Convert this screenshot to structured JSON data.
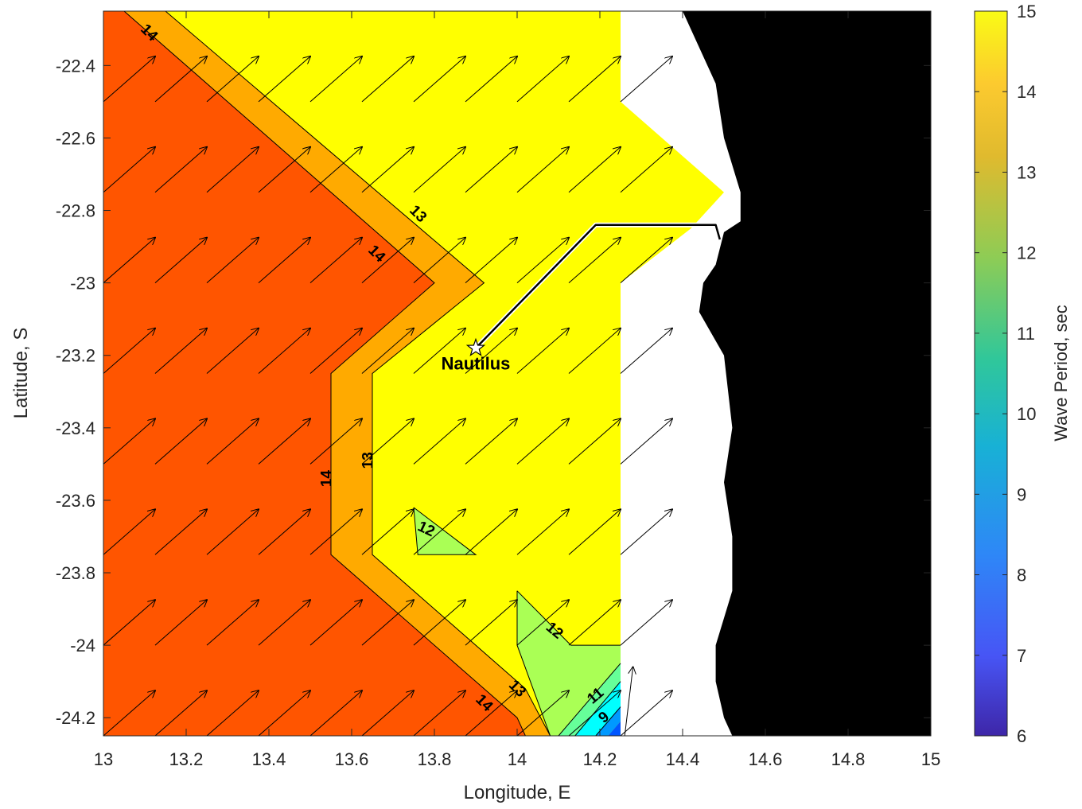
{
  "chart_data": {
    "type": "heatmap",
    "title": "",
    "xlabel": "Longitude, E",
    "ylabel": "Latitude, S",
    "xlim": [
      13,
      15
    ],
    "ylim": [
      -24.25,
      -22.25
    ],
    "x_ticks": [
      13,
      13.2,
      13.4,
      13.6,
      13.8,
      14,
      14.2,
      14.4,
      14.6,
      14.8,
      15
    ],
    "x_tick_labels": [
      "13",
      "13.2",
      "13.4",
      "13.6",
      "13.8",
      "14",
      "14.2",
      "14.4",
      "14.6",
      "14.8",
      "15"
    ],
    "y_ticks": [
      -22.4,
      -22.6,
      -22.8,
      -23,
      -23.2,
      -23.4,
      -23.6,
      -23.8,
      -24,
      -24.2
    ],
    "y_tick_labels": [
      "-22.4",
      "-22.6",
      "-22.8",
      "-23",
      "-23.2",
      "-23.4",
      "-23.6",
      "-23.8",
      "-24",
      "-24.2"
    ],
    "colorbar": {
      "label": "Wave Period, sec",
      "range": [
        6,
        15
      ],
      "ticks": [
        6,
        7,
        8,
        9,
        10,
        11,
        12,
        13,
        14,
        15
      ],
      "tick_labels": [
        "6",
        "7",
        "8",
        "9",
        "10",
        "11",
        "12",
        "13",
        "14",
        "15"
      ],
      "colormap": [
        "#3e26a8",
        "#4755f5",
        "#2e87f7",
        "#18b1d5",
        "#30c79a",
        "#8ecc55",
        "#e0ba2e",
        "#fcca2f",
        "#f9fb15"
      ]
    },
    "regions": [
      {
        "value": 14.5,
        "color": "#ff5500",
        "polygon": [
          [
            13,
            -22.25
          ],
          [
            13.05,
            -22.25
          ],
          [
            13.8,
            -23.0
          ],
          [
            13.55,
            -23.25
          ],
          [
            13.55,
            -23.75
          ],
          [
            14.0,
            -24.2
          ],
          [
            14.02,
            -24.25
          ],
          [
            13,
            -24.25
          ]
        ]
      },
      {
        "value": 13.5,
        "color": "#ffaa00",
        "polygon": [
          [
            13.05,
            -22.25
          ],
          [
            13.15,
            -22.25
          ],
          [
            13.92,
            -23.0
          ],
          [
            13.65,
            -23.25
          ],
          [
            13.65,
            -23.75
          ],
          [
            14.02,
            -24.12
          ],
          [
            14.08,
            -24.25
          ],
          [
            14.02,
            -24.25
          ],
          [
            14.0,
            -24.2
          ],
          [
            13.55,
            -23.75
          ],
          [
            13.55,
            -23.25
          ],
          [
            13.8,
            -23.0
          ]
        ]
      },
      {
        "value": 15,
        "color": "#ffff00",
        "polygon": [
          [
            13.15,
            -22.25
          ],
          [
            14.25,
            -22.25
          ],
          [
            14.25,
            -22.5
          ],
          [
            14.5,
            -22.75
          ],
          [
            14.42,
            -22.85
          ],
          [
            14.25,
            -23.0
          ],
          [
            14.25,
            -24.25
          ],
          [
            14.08,
            -24.25
          ],
          [
            14.02,
            -24.12
          ],
          [
            13.65,
            -23.75
          ],
          [
            13.65,
            -23.25
          ],
          [
            13.92,
            -23.0
          ]
        ]
      },
      {
        "value": 12.5,
        "color": "#aaff55",
        "polygon": [
          [
            13.75,
            -23.62
          ],
          [
            13.76,
            -23.75
          ],
          [
            13.9,
            -23.75
          ]
        ]
      },
      {
        "value": 12.5,
        "color": "#aaff55",
        "polygon": [
          [
            14.0,
            -23.85
          ],
          [
            14.13,
            -24.0
          ],
          [
            14.25,
            -24.0
          ],
          [
            14.25,
            -24.05
          ],
          [
            14.1,
            -24.25
          ],
          [
            14.08,
            -24.25
          ],
          [
            14.0,
            -24.0
          ]
        ]
      },
      {
        "value": 11.5,
        "color": "#66ff99",
        "polygon": [
          [
            14.25,
            -24.05
          ],
          [
            14.25,
            -24.1
          ],
          [
            14.14,
            -24.25
          ],
          [
            14.1,
            -24.25
          ]
        ]
      },
      {
        "value": 10.5,
        "color": "#00ffff",
        "polygon": [
          [
            14.25,
            -24.1
          ],
          [
            14.25,
            -24.17
          ],
          [
            14.19,
            -24.25
          ],
          [
            14.14,
            -24.25
          ]
        ]
      },
      {
        "value": 9.5,
        "color": "#0099ff",
        "polygon": [
          [
            14.25,
            -24.17
          ],
          [
            14.25,
            -24.21
          ],
          [
            14.22,
            -24.25
          ],
          [
            14.19,
            -24.25
          ]
        ]
      },
      {
        "value": 8.5,
        "color": "#0055ff",
        "polygon": [
          [
            14.25,
            -24.21
          ],
          [
            14.25,
            -24.25
          ],
          [
            14.22,
            -24.25
          ]
        ]
      }
    ],
    "contour_lines": [
      {
        "level": 14,
        "points": [
          [
            13.05,
            -22.25
          ],
          [
            13.8,
            -23.0
          ],
          [
            13.55,
            -23.25
          ],
          [
            13.55,
            -23.75
          ],
          [
            14.0,
            -24.2
          ],
          [
            14.02,
            -24.25
          ]
        ]
      },
      {
        "level": 13,
        "points": [
          [
            13.15,
            -22.25
          ],
          [
            13.92,
            -23.0
          ],
          [
            13.65,
            -23.25
          ],
          [
            13.65,
            -23.75
          ],
          [
            14.02,
            -24.12
          ],
          [
            14.08,
            -24.25
          ]
        ]
      },
      {
        "level": 12,
        "points": [
          [
            13.75,
            -23.62
          ],
          [
            13.76,
            -23.75
          ],
          [
            13.9,
            -23.75
          ],
          [
            13.75,
            -23.62
          ]
        ]
      },
      {
        "level": 12,
        "points": [
          [
            14.0,
            -23.85
          ],
          [
            14.13,
            -24.0
          ],
          [
            14.25,
            -24.0
          ]
        ]
      },
      {
        "level": 12,
        "points": [
          [
            14.0,
            -23.85
          ],
          [
            14.0,
            -24.0
          ],
          [
            14.08,
            -24.25
          ]
        ]
      },
      {
        "level": 11,
        "points": [
          [
            14.25,
            -24.05
          ],
          [
            14.1,
            -24.25
          ]
        ]
      },
      {
        "level": 10,
        "points": [
          [
            14.25,
            -24.1
          ],
          [
            14.14,
            -24.25
          ]
        ]
      },
      {
        "level": 9,
        "points": [
          [
            14.25,
            -24.17
          ],
          [
            14.19,
            -24.25
          ]
        ]
      }
    ],
    "contour_labels": [
      {
        "text": "14",
        "x": 13.11,
        "y": -22.31,
        "angle": 45
      },
      {
        "text": "13",
        "x": 13.76,
        "y": -22.81,
        "angle": 45
      },
      {
        "text": "14",
        "x": 13.66,
        "y": -22.92,
        "angle": 45
      },
      {
        "text": "13",
        "x": 13.64,
        "y": -23.49,
        "angle": -90
      },
      {
        "text": "14",
        "x": 13.54,
        "y": -23.54,
        "angle": -90
      },
      {
        "text": "12",
        "x": 13.78,
        "y": -23.68,
        "angle": 25
      },
      {
        "text": "12",
        "x": 14.09,
        "y": -23.96,
        "angle": 40
      },
      {
        "text": "13",
        "x": 14.0,
        "y": -24.12,
        "angle": 45
      },
      {
        "text": "14",
        "x": 13.92,
        "y": -24.16,
        "angle": 45
      },
      {
        "text": "11",
        "x": 14.19,
        "y": -24.14,
        "angle": -40
      },
      {
        "text": "9",
        "x": 14.21,
        "y": -24.2,
        "angle": -40
      }
    ],
    "land_color": "#000000",
    "land_boundary": [
      [
        15,
        -22.25
      ],
      [
        14.4,
        -22.25
      ],
      [
        14.48,
        -22.45
      ],
      [
        14.5,
        -22.6
      ],
      [
        14.54,
        -22.75
      ],
      [
        14.54,
        -22.83
      ],
      [
        14.5,
        -22.86
      ],
      [
        14.48,
        -22.95
      ],
      [
        14.45,
        -23.0
      ],
      [
        14.44,
        -23.08
      ],
      [
        14.5,
        -23.2
      ],
      [
        14.52,
        -23.4
      ],
      [
        14.5,
        -23.55
      ],
      [
        14.52,
        -23.7
      ],
      [
        14.52,
        -23.85
      ],
      [
        14.48,
        -24.0
      ],
      [
        14.48,
        -24.1
      ],
      [
        14.5,
        -24.2
      ],
      [
        14.52,
        -24.25
      ],
      [
        15,
        -24.25
      ]
    ],
    "vectors": {
      "description_free": true,
      "x": [
        13.0,
        13.125,
        13.25,
        13.375,
        13.5,
        13.625,
        13.75,
        13.875,
        14.0,
        14.125,
        14.25
      ],
      "y": [
        -22.5,
        -22.75,
        -23.0,
        -23.25,
        -23.5,
        -23.75,
        -24.0,
        -24.25
      ],
      "extra_row_y": -22.25,
      "dx": 0.125,
      "dy": 0.125
    },
    "ship_track": {
      "label": "Nautilus",
      "points": [
        [
          13.9,
          -23.18
        ],
        [
          14.19,
          -22.84
        ],
        [
          14.48,
          -22.84
        ],
        [
          14.49,
          -22.88
        ]
      ],
      "station": [
        13.9,
        -23.18
      ]
    }
  }
}
